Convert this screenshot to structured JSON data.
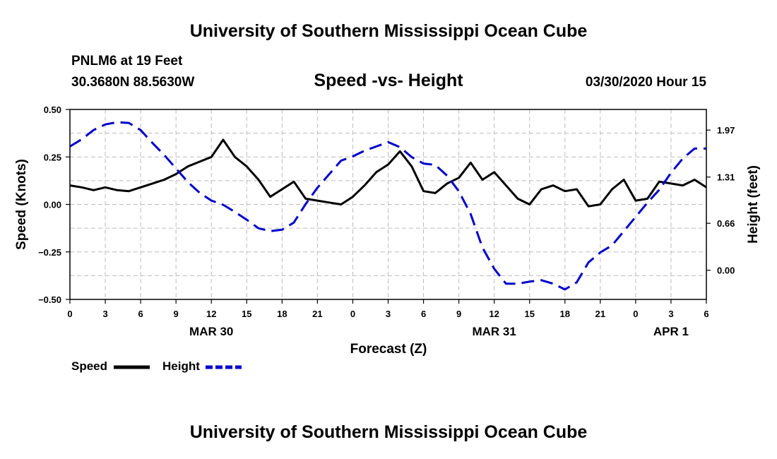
{
  "header": {
    "title": "University of Southern Mississippi Ocean Cube",
    "station": "PNLM6 at 19 Feet",
    "coords": "30.3680N 88.5630W",
    "subtitle": "Speed -vs- Height",
    "datetime": "03/30/2020 Hour 15"
  },
  "footer": {
    "title": "University of Southern Mississippi Ocean Cube"
  },
  "colors": {
    "speed": "#000000",
    "height": "#0000cc",
    "grid": "#bbbbbb"
  },
  "legend": {
    "speed": "Speed",
    "height": "Height"
  },
  "chart_data": {
    "type": "line",
    "title": "Speed -vs- Height",
    "xlabel": "Forecast (Z)",
    "ylabel": "Speed (Knots)",
    "y2label": "Height (feet)",
    "xlim": [
      0,
      54
    ],
    "ylim": [
      -0.5,
      0.5
    ],
    "y2lim": [
      -0.41,
      2.26
    ],
    "x_ticks": [
      0,
      3,
      6,
      9,
      12,
      15,
      18,
      21,
      24,
      27,
      30,
      33,
      36,
      39,
      42,
      45,
      48,
      51,
      54
    ],
    "x_tick_labels": [
      "0",
      "3",
      "6",
      "9",
      "12",
      "15",
      "18",
      "21",
      "0",
      "3",
      "6",
      "9",
      "12",
      "15",
      "18",
      "21",
      "0",
      "3",
      "6"
    ],
    "y_ticks": [
      -0.5,
      -0.25,
      0,
      0.25,
      0.5
    ],
    "y_tick_labels": [
      "−0.50",
      "−0.25",
      "0.00",
      "0.25",
      "0.50"
    ],
    "y2_ticks": [
      0,
      0.66,
      1.31,
      1.97
    ],
    "y2_tick_labels": [
      "0.00",
      "0.66",
      "1.31",
      "1.97"
    ],
    "day_labels": [
      {
        "x": 12,
        "label": "MAR 30"
      },
      {
        "x": 36,
        "label": "MAR 31"
      },
      {
        "x": 51,
        "label": "APR 1"
      }
    ],
    "grid": true,
    "series": [
      {
        "name": "Speed",
        "axis": "left",
        "style": "solid",
        "x": [
          0,
          1,
          2,
          3,
          4,
          5,
          6,
          7,
          8,
          9,
          10,
          11,
          12,
          13,
          14,
          15,
          16,
          17,
          18,
          19,
          20,
          21,
          22,
          23,
          24,
          25,
          26,
          27,
          28,
          29,
          30,
          31,
          32,
          33,
          34,
          35,
          36,
          37,
          38,
          39,
          40,
          41,
          42,
          43,
          44,
          45,
          46,
          47,
          48,
          49,
          50,
          51,
          52,
          53,
          54
        ],
        "values": [
          0.1,
          0.09,
          0.075,
          0.09,
          0.075,
          0.07,
          0.09,
          0.11,
          0.13,
          0.16,
          0.2,
          0.225,
          0.25,
          0.34,
          0.25,
          0.2,
          0.13,
          0.04,
          0.08,
          0.12,
          0.03,
          0.02,
          0.01,
          0.0,
          0.04,
          0.1,
          0.17,
          0.21,
          0.28,
          0.2,
          0.07,
          0.06,
          0.11,
          0.14,
          0.22,
          0.13,
          0.17,
          0.1,
          0.03,
          0.0,
          0.08,
          0.1,
          0.07,
          0.08,
          -0.01,
          0.0,
          0.08,
          0.13,
          0.02,
          0.03,
          0.12,
          0.11,
          0.1,
          0.13,
          0.09
        ]
      },
      {
        "name": "Height",
        "axis": "right",
        "style": "dashed",
        "x": [
          0,
          1,
          2,
          3,
          4,
          5,
          6,
          7,
          8,
          9,
          10,
          11,
          12,
          13,
          14,
          15,
          16,
          17,
          18,
          19,
          20,
          21,
          22,
          23,
          24,
          25,
          26,
          27,
          28,
          29,
          30,
          31,
          32,
          33,
          34,
          35,
          36,
          37,
          38,
          39,
          40,
          41,
          42,
          43,
          44,
          45,
          46,
          47,
          48,
          49,
          50,
          51,
          52,
          53,
          54
        ],
        "values": [
          1.74,
          1.84,
          1.97,
          2.05,
          2.08,
          2.07,
          1.97,
          1.79,
          1.62,
          1.43,
          1.24,
          1.09,
          0.98,
          0.92,
          0.82,
          0.71,
          0.59,
          0.55,
          0.57,
          0.67,
          0.93,
          1.16,
          1.35,
          1.54,
          1.6,
          1.68,
          1.74,
          1.8,
          1.73,
          1.59,
          1.5,
          1.48,
          1.33,
          1.11,
          0.79,
          0.32,
          0.02,
          -0.19,
          -0.19,
          -0.16,
          -0.14,
          -0.19,
          -0.27,
          -0.17,
          0.11,
          0.25,
          0.35,
          0.55,
          0.75,
          0.95,
          1.13,
          1.37,
          1.57,
          1.71,
          1.71
        ]
      }
    ]
  }
}
